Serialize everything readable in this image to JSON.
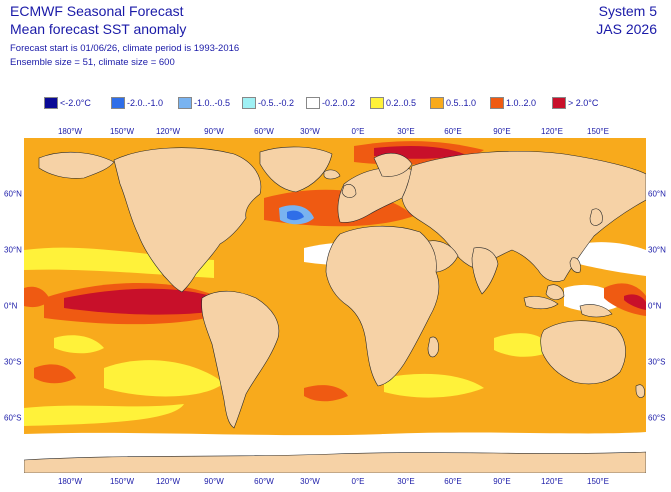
{
  "header": {
    "title": "ECMWF Seasonal Forecast",
    "subtitle": "Mean forecast SST anomaly",
    "info_line1": "Forecast start is 01/06/26, climate period is 1993-2016",
    "info_line2": "Ensemble size = 51, climate size = 600",
    "system": "System 5",
    "season": "JAS 2026"
  },
  "legend": [
    {
      "label": "<-2.0°C",
      "color": "#0a0a96"
    },
    {
      "label": "-2.0..-1.0",
      "color": "#2f6ee8"
    },
    {
      "label": "-1.0..-0.5",
      "color": "#79b3f0"
    },
    {
      "label": "-0.5..-0.2",
      "color": "#9ff0f4"
    },
    {
      "label": "-0.2..0.2",
      "color": "#ffffff"
    },
    {
      "label": "0.2..0.5",
      "color": "#fff23a"
    },
    {
      "label": "0.5..1.0",
      "color": "#f8aa1c"
    },
    {
      "label": "1.0..2.0",
      "color": "#ef5a12"
    },
    {
      "label": "> 2.0°C",
      "color": "#c8102a"
    }
  ],
  "axes": {
    "lon_labels": [
      "180°W",
      "150°W",
      "120°W",
      "90°W",
      "60°W",
      "30°W",
      "0°E",
      "30°E",
      "60°E",
      "90°E",
      "120°E",
      "150°E"
    ],
    "lat_labels": [
      "60°N",
      "30°N",
      "0°N",
      "30°S",
      "60°S"
    ]
  },
  "colors": {
    "land": "#f6d2a6",
    "ocean_background": "#f8aa1c",
    "text": "#1a1aa8"
  }
}
